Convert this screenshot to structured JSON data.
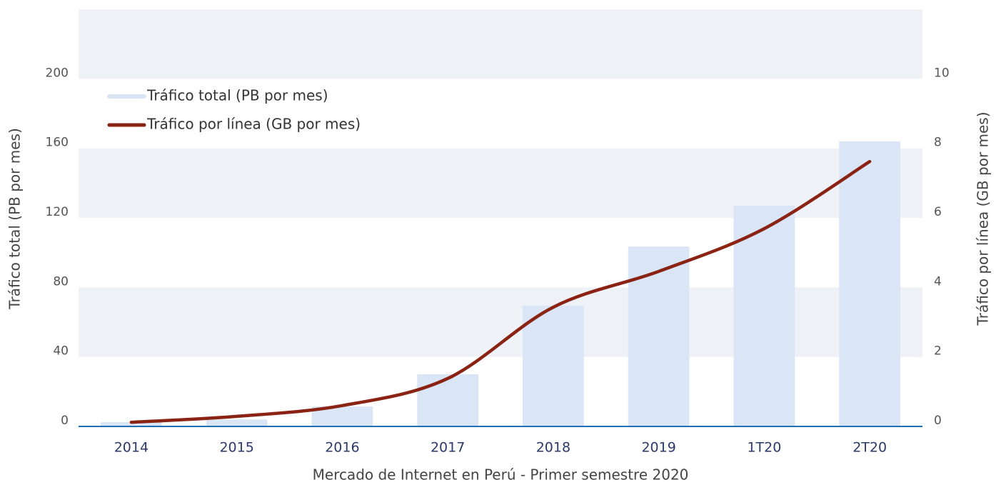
{
  "chart_data": {
    "type": "bar_line",
    "x_label": "Mercado de Internet en Perú - Primer semestre 2020",
    "y_label": "Tráfico total (PB por mes)",
    "y2_label": "Tráfico por línea (GB por mes)",
    "categories": [
      "2014",
      "2015",
      "2016",
      "2017",
      "2018",
      "2019",
      "1T20",
      "2T20"
    ],
    "series": [
      {
        "name": "Tráfico total (PB por mes)",
        "type": "bar",
        "color": "#dae5f5",
        "values": [
          2.5,
          4,
          11.5,
          30,
          69.5,
          103.5,
          127,
          164
        ]
      },
      {
        "name": "Tráfico por línea (GB por mes)",
        "type": "line",
        "axis": "y2",
        "color": "#8b2314",
        "values": [
          0.12,
          0.29,
          0.6,
          1.38,
          3.43,
          4.46,
          5.69,
          7.62
        ]
      }
    ],
    "ylim": [
      0,
      240
    ],
    "yticks": [
      0,
      40,
      80,
      120,
      160,
      200
    ],
    "y2lim": [
      0,
      12
    ],
    "y2ticks": [
      0,
      2,
      4,
      6,
      8,
      10
    ],
    "grid": "bands",
    "grid_color": "#eef2f7",
    "axis_color": "#1f6fb5",
    "legend": "top-left"
  }
}
